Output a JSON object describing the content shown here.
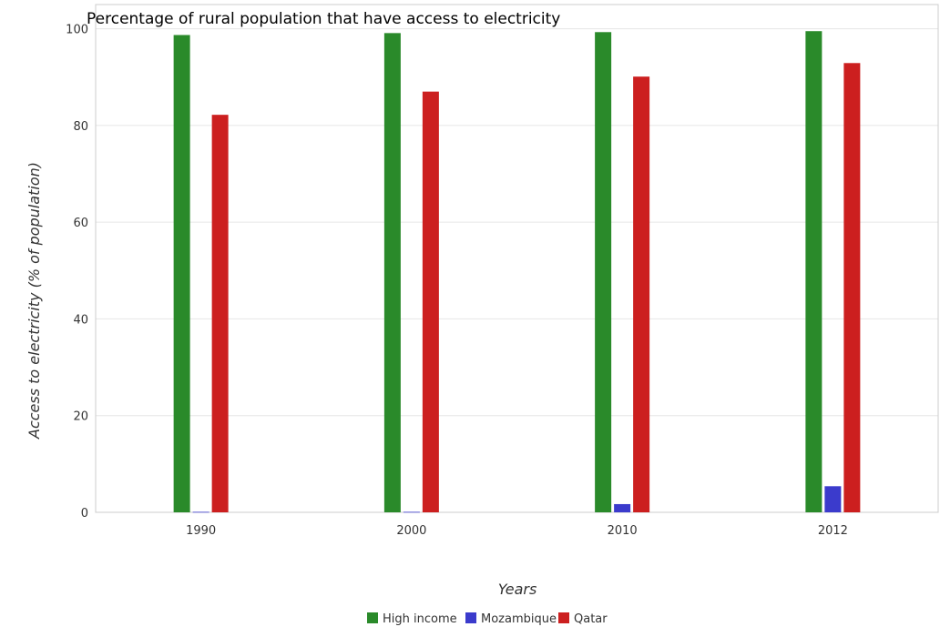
{
  "chart_data": {
    "type": "bar",
    "title": "Percentage of rural population that have access to electricity",
    "xlabel": "Years",
    "ylabel": "Access to electricity (% of population)",
    "categories": [
      "1990",
      "2000",
      "2010",
      "2012"
    ],
    "series": [
      {
        "name": "High income",
        "color": "#2a8a2a",
        "values": [
          98.7,
          99.1,
          99.3,
          99.5
        ]
      },
      {
        "name": "Mozambique",
        "color": "#3b3bcc",
        "values": [
          0.1,
          0.1,
          1.7,
          5.4
        ]
      },
      {
        "name": "Qatar",
        "color": "#cc1f1f",
        "values": [
          82.2,
          87.0,
          90.1,
          92.9
        ]
      }
    ],
    "ylim": [
      0,
      105
    ],
    "yticks": [
      0,
      20,
      40,
      60,
      80,
      100
    ],
    "grid": true,
    "legend": "bottom-center"
  }
}
